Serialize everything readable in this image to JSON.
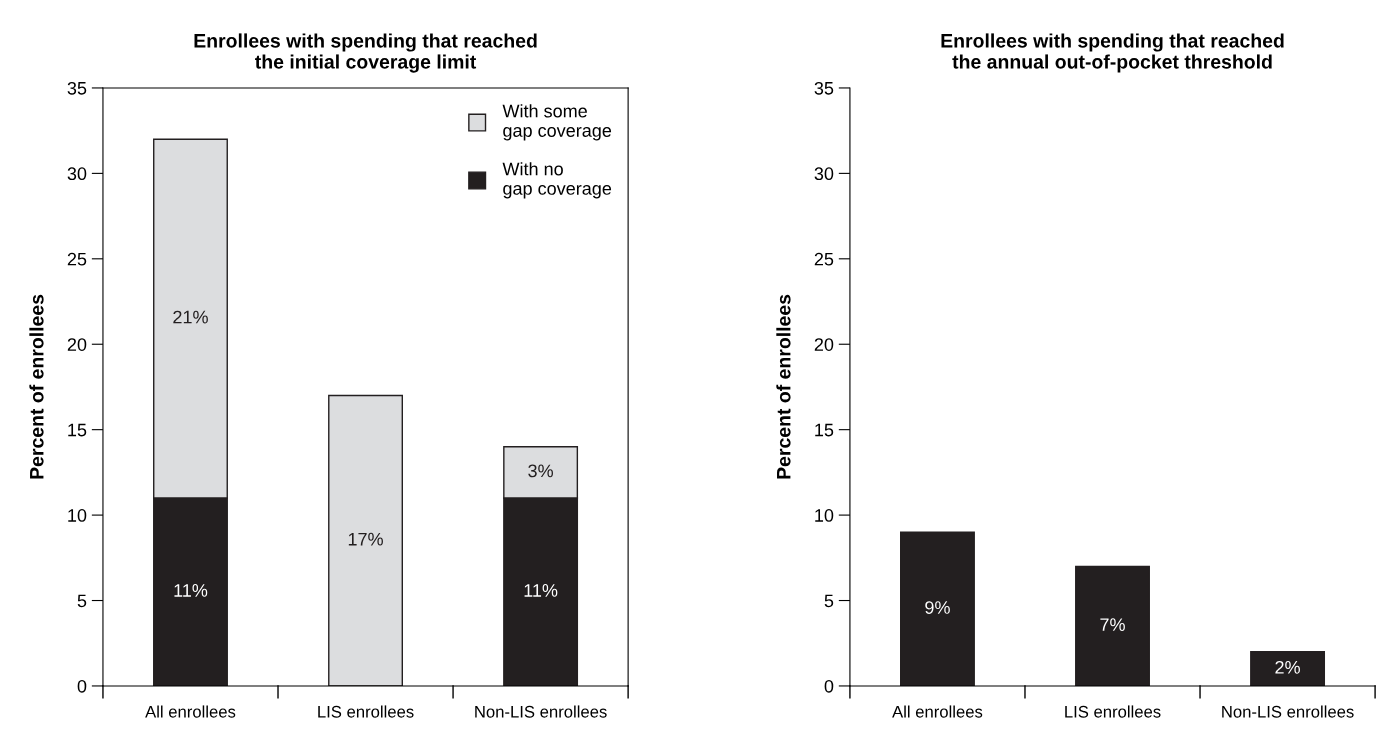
{
  "chart_data": [
    {
      "type": "bar",
      "title": "Enrollees with spending that reached\nthe initial coverage limit",
      "ylabel": "Percent of enrollees",
      "categories": [
        "All enrollees",
        "LIS enrollees",
        "Non-LIS enrollees"
      ],
      "stacked": true,
      "series": [
        {
          "name": "With no\ngap coverage",
          "color": "#231f20",
          "values": [
            11,
            null,
            11
          ],
          "value_labels": [
            "11%",
            null,
            "11%"
          ]
        },
        {
          "name": "With some\ngap coverage",
          "color": "#dcdddf",
          "values": [
            21,
            17,
            3
          ],
          "value_labels": [
            "21%",
            "17%",
            "3%"
          ]
        }
      ],
      "ylim": [
        0,
        35
      ],
      "yticks": [
        0,
        5,
        10,
        15,
        20,
        25,
        30,
        35
      ],
      "legend": "top right",
      "grid": false
    },
    {
      "type": "bar",
      "title": "Enrollees with spending that reached\nthe annual out-of-pocket threshold",
      "ylabel": "Percent of enrollees",
      "categories": [
        "All enrollees",
        "LIS enrollees",
        "Non-LIS enrollees"
      ],
      "series": [
        {
          "color": "#231f20",
          "values": [
            9,
            7,
            2
          ],
          "value_labels": [
            "9%",
            "7%",
            "2%"
          ]
        }
      ],
      "ylim": [
        0,
        35
      ],
      "yticks": [
        0,
        5,
        10,
        15,
        20,
        25,
        30,
        35
      ],
      "grid": false
    }
  ]
}
